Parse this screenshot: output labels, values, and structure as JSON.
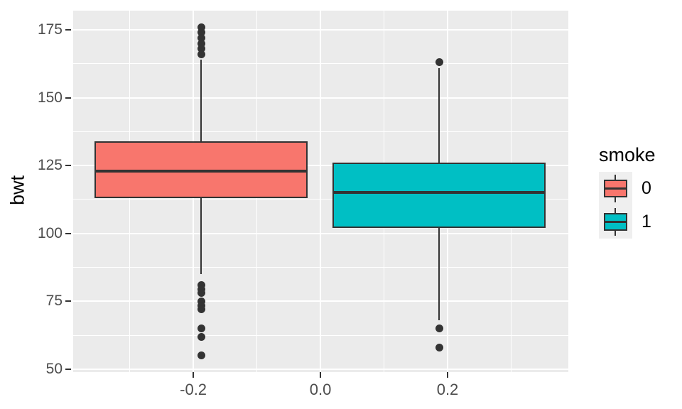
{
  "figure": {
    "background": "#FFFFFF",
    "panel_background": "#EBEBEB",
    "gridline_color": "#FFFFFF",
    "outline_color": "#333333",
    "tick_label_color": "#4D4D4D",
    "title_color": "#000000"
  },
  "chart_data": {
    "type": "boxplot",
    "title": "",
    "xlabel": "",
    "ylabel": "bwt",
    "grid": "major-and-minor",
    "x_axis": {
      "range": [
        -0.389,
        0.39
      ],
      "ticks": [
        -0.2,
        0.0,
        0.2
      ],
      "tick_labels": [
        "-0.2",
        "0.0",
        "0.2"
      ],
      "minor_ticks": [
        -0.3,
        -0.1,
        0.1,
        0.3
      ]
    },
    "y_axis": {
      "range": [
        48.95,
        182.06
      ],
      "ticks": [
        50,
        75,
        100,
        125,
        150,
        175
      ],
      "tick_labels": [
        "50",
        "75",
        "100",
        "125",
        "150",
        "175"
      ],
      "minor_ticks": [
        62.5,
        87.5,
        112.5,
        137.5,
        162.5
      ]
    },
    "legend": {
      "title": "smoke",
      "position": "right",
      "entries": [
        {
          "label": "0",
          "color": "#F8766D"
        },
        {
          "label": "1",
          "color": "#00BFC4"
        }
      ]
    },
    "series": [
      {
        "name": "0",
        "fill": "#F8766D",
        "x_center": -0.1877,
        "box_width": 0.335,
        "whisker_low": 85,
        "q1": 113,
        "median": 123,
        "q3": 134,
        "whisker_high": 164,
        "outliers_high": [
          176,
          174,
          172,
          170,
          168,
          166
        ],
        "outliers_low": [
          81,
          79.5,
          78,
          75,
          73.5,
          72,
          65,
          62,
          55
        ]
      },
      {
        "name": "1",
        "fill": "#00BFC4",
        "x_center": 0.1866,
        "box_width": 0.335,
        "whisker_low": 68,
        "q1": 102,
        "median": 115,
        "q3": 126,
        "whisker_high": 161,
        "outliers_high": [
          163
        ],
        "outliers_low": [
          65,
          58
        ]
      }
    ]
  }
}
